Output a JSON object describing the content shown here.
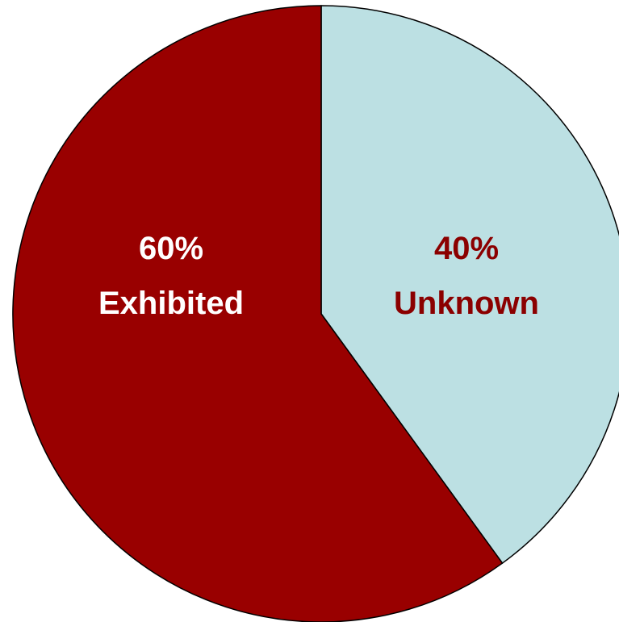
{
  "chart_data": {
    "type": "pie",
    "title": "",
    "start": "12 o'clock",
    "direction": "clockwise",
    "slices": [
      {
        "percent_label": "40%",
        "category_label": "Unknown",
        "value": 40,
        "color": "#BCE0E3",
        "label_color": "#8B0000"
      },
      {
        "percent_label": "60%",
        "category_label": "Exhibited",
        "value": 60,
        "color": "#990000",
        "label_color": "#FFFFFF"
      }
    ],
    "outline_color": "#000000",
    "legend": "none"
  }
}
